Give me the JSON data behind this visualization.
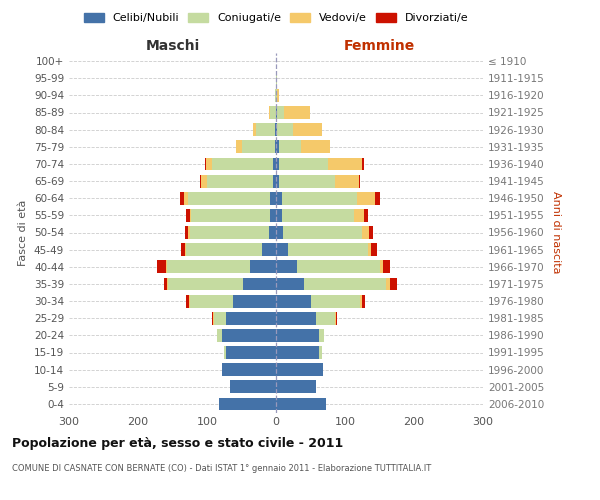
{
  "age_groups": [
    "100+",
    "95-99",
    "90-94",
    "85-89",
    "80-84",
    "75-79",
    "70-74",
    "65-69",
    "60-64",
    "55-59",
    "50-54",
    "45-49",
    "40-44",
    "35-39",
    "30-34",
    "25-29",
    "20-24",
    "15-19",
    "10-14",
    "5-9",
    "0-4"
  ],
  "birth_years": [
    "≤ 1910",
    "1911-1915",
    "1916-1920",
    "1921-1925",
    "1926-1930",
    "1931-1935",
    "1936-1940",
    "1941-1945",
    "1946-1950",
    "1951-1955",
    "1956-1960",
    "1961-1965",
    "1966-1970",
    "1971-1975",
    "1976-1980",
    "1981-1985",
    "1986-1990",
    "1991-1995",
    "1996-2000",
    "2001-2005",
    "2006-2010"
  ],
  "maschi": {
    "celibi": [
      0,
      0,
      0,
      0,
      1,
      2,
      5,
      5,
      8,
      8,
      10,
      20,
      38,
      48,
      62,
      72,
      78,
      72,
      78,
      67,
      82
    ],
    "coniugati": [
      0,
      0,
      1,
      8,
      28,
      48,
      88,
      95,
      120,
      115,
      115,
      110,
      120,
      108,
      62,
      18,
      8,
      4,
      0,
      0,
      0
    ],
    "vedovi": [
      0,
      0,
      0,
      2,
      5,
      8,
      8,
      8,
      5,
      2,
      2,
      2,
      2,
      2,
      2,
      1,
      0,
      0,
      0,
      0,
      0
    ],
    "divorziati": [
      0,
      0,
      0,
      0,
      0,
      0,
      2,
      2,
      6,
      5,
      5,
      5,
      12,
      5,
      5,
      2,
      0,
      0,
      0,
      0,
      0
    ]
  },
  "femmine": {
    "nubili": [
      0,
      0,
      0,
      1,
      2,
      4,
      5,
      5,
      8,
      8,
      10,
      18,
      30,
      40,
      50,
      58,
      62,
      62,
      68,
      58,
      72
    ],
    "coniugate": [
      0,
      1,
      2,
      10,
      22,
      32,
      70,
      80,
      110,
      105,
      115,
      115,
      120,
      120,
      72,
      28,
      8,
      4,
      0,
      0,
      0
    ],
    "vedove": [
      0,
      0,
      2,
      38,
      42,
      42,
      50,
      35,
      25,
      15,
      10,
      5,
      5,
      5,
      2,
      1,
      0,
      0,
      0,
      0,
      0
    ],
    "divorziate": [
      0,
      0,
      0,
      0,
      0,
      0,
      2,
      2,
      8,
      5,
      5,
      8,
      10,
      10,
      5,
      2,
      0,
      0,
      0,
      0,
      0
    ]
  },
  "colors": {
    "celibi": "#4472a8",
    "coniugati": "#c5dba0",
    "vedovi": "#f5c96a",
    "divorziati": "#cc1100"
  },
  "xlim": 300,
  "title": "Popolazione per età, sesso e stato civile - 2011",
  "subtitle": "COMUNE DI CASNATE CON BERNATE (CO) - Dati ISTAT 1° gennaio 2011 - Elaborazione TUTTITALIA.IT",
  "ylabel_left": "Fasce di età",
  "ylabel_right": "Anni di nascita",
  "xlabel_left": "Maschi",
  "xlabel_right": "Femmine",
  "bg_color": "#ffffff",
  "grid_color": "#cccccc",
  "bar_height": 0.75
}
